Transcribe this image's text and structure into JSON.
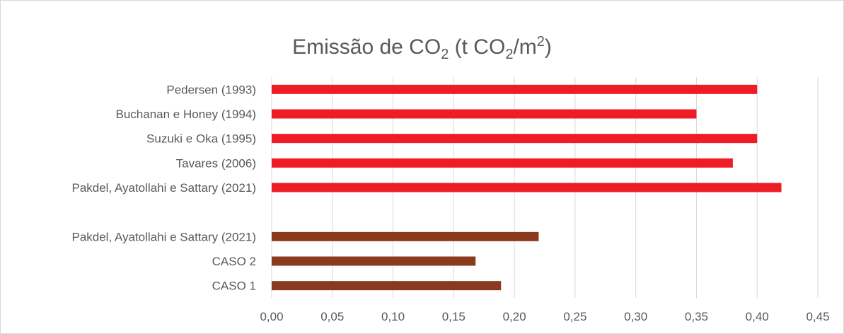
{
  "chart_data": {
    "type": "bar",
    "orientation": "horizontal",
    "title": {
      "prefix": "Emissão de CO",
      "sub1": "2",
      "middle": " (t CO",
      "sub2": "2",
      "after_sub2": "/m",
      "sup": "2",
      "suffix": ")"
    },
    "xlim": [
      0,
      0.45
    ],
    "xticks": [
      0.0,
      0.05,
      0.1,
      0.15,
      0.2,
      0.25,
      0.3,
      0.35,
      0.4,
      0.45
    ],
    "xtick_labels": [
      "0,00",
      "0,05",
      "0,10",
      "0,15",
      "0,20",
      "0,25",
      "0,30",
      "0,35",
      "0,40",
      "0,45"
    ],
    "grid": "vertical",
    "legend": "none",
    "colors": {
      "group_red": "#ee1c25",
      "group_brown": "#8b3a1e",
      "grid": "#d9d9d9",
      "text": "#595959"
    },
    "categories": [
      "Pedersen (1993)",
      "Buchanan e Honey (1994)",
      "Suzuki e Oka (1995)",
      "Tavares (2006)",
      "Pakdel, Ayatollahi e Sattary (2021)",
      "",
      "Pakdel, Ayatollahi e Sattary (2021)",
      "CASO 2",
      "CASO 1"
    ],
    "values": [
      0.4,
      0.35,
      0.4,
      0.38,
      0.42,
      null,
      0.22,
      0.168,
      0.189
    ],
    "bar_color_keys": [
      "group_red",
      "group_red",
      "group_red",
      "group_red",
      "group_red",
      null,
      "group_brown",
      "group_brown",
      "group_brown"
    ]
  }
}
